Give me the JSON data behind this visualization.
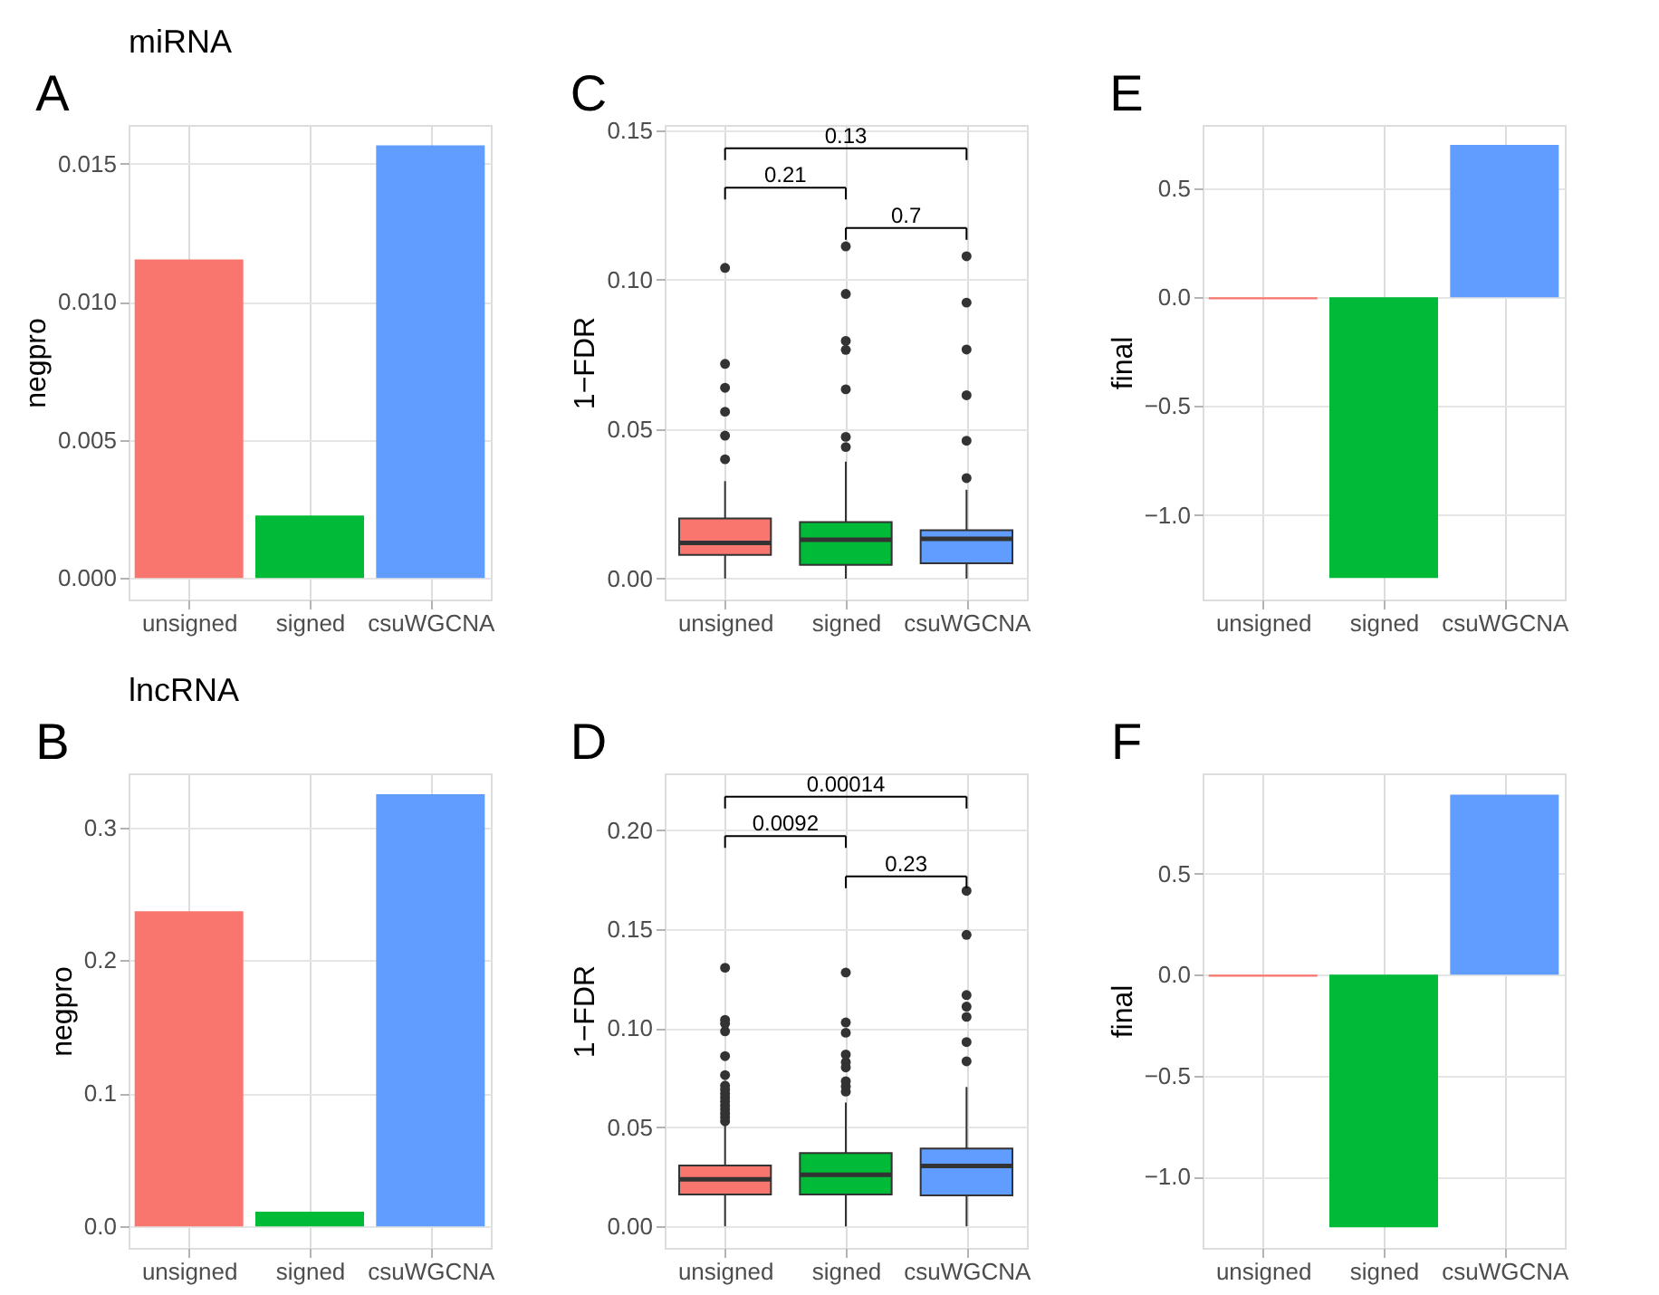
{
  "chart_data": [
    {
      "type": "bar",
      "title": "miRNA",
      "ylabel": "negpro",
      "categories": [
        "unsigned",
        "signed",
        "csuWGCNA"
      ],
      "values": [
        0.01153,
        0.00226,
        0.01566
      ],
      "colors": [
        "#f8766d",
        "#00ba38",
        "#619cff"
      ],
      "ylim": [
        -0.00078,
        0.0164
      ],
      "yticks": [
        {
          "value": 0,
          "label": "0.000"
        },
        0.005,
        {
          "value": 0.01,
          "label": "0.010"
        },
        0.015
      ],
      "grid": true,
      "annotations": [
        "A"
      ]
    },
    {
      "type": "box",
      "ylabel": "1−FDR",
      "categories": [
        "unsigned",
        "signed",
        "csuWGCNA"
      ],
      "colors": [
        "#f8766d",
        "#00ba38",
        "#619cff"
      ],
      "marker": "circle",
      "boxes": [
        {
          "low": 0,
          "q1": 0.0079,
          "median": 0.0119,
          "q3": 0.0201,
          "high": 0.0326,
          "outliers": [
            0.0399,
            0.0478,
            0.0558,
            0.0638,
            0.0718,
            0.1039
          ]
        },
        {
          "low": 0,
          "q1": 0.0046,
          "median": 0.013,
          "q3": 0.0189,
          "high": 0.0391,
          "outliers": [
            0.044,
            0.0474,
            0.0633,
            0.0765,
            0.0795,
            0.0952,
            0.1111
          ]
        },
        {
          "low": 0,
          "q1": 0.0051,
          "median": 0.0133,
          "q3": 0.0162,
          "high": 0.0297,
          "outliers": [
            0.0336,
            0.0461,
            0.0613,
            0.0766,
            0.0923,
            0.1078
          ]
        }
      ],
      "ylim": [
        -0.007,
        0.1517
      ],
      "yticks": [
        {
          "value": 0,
          "label": "0.00"
        },
        0.05,
        {
          "value": 0.1,
          "label": "0.10"
        },
        0.15
      ],
      "grid": true,
      "annotations": [
        "C",
        "0.21",
        "0.7",
        "0.13"
      ]
    },
    {
      "type": "bar",
      "ylabel": "final",
      "categories": [
        "unsigned",
        "signed",
        "csuWGCNA"
      ],
      "values": [
        -0.01,
        -1.29,
        0.7
      ],
      "colors": [
        "#f8766d",
        "#00ba38",
        "#619cff"
      ],
      "ylim": [
        -1.389,
        0.7915
      ],
      "yticks": [
        {
          "value": -1,
          "label": "−1.0"
        },
        {
          "value": -0.5,
          "label": "−0.5"
        },
        {
          "value": 0,
          "label": "0.0"
        },
        0.5
      ],
      "grid": true,
      "annotations": [
        "E"
      ]
    },
    {
      "type": "bar",
      "title": "lncRNA",
      "ylabel": "negpro",
      "categories": [
        "unsigned",
        "signed",
        "csuWGCNA"
      ],
      "values": [
        0.237,
        0.011,
        0.325
      ],
      "colors": [
        "#f8766d",
        "#00ba38",
        "#619cff"
      ],
      "ylim": [
        -0.0162,
        0.3406
      ],
      "yticks": [
        {
          "value": 0,
          "label": "0.0"
        },
        0.1,
        0.2,
        0.3
      ],
      "grid": true,
      "annotations": [
        "B"
      ]
    },
    {
      "type": "box",
      "ylabel": "1−FDR",
      "categories": [
        "unsigned",
        "signed",
        "csuWGCNA"
      ],
      "colors": [
        "#f8766d",
        "#00ba38",
        "#619cff"
      ],
      "marker": "circle",
      "boxes": [
        {
          "low": 0,
          "q1": 0.0161,
          "median": 0.0237,
          "q3": 0.0307,
          "high": 0.0516,
          "outliers": [
            0.053,
            0.055,
            0.057,
            0.059,
            0.061,
            0.063,
            0.065,
            0.067,
            0.069,
            0.071,
            0.0763,
            0.0859,
            0.0984,
            0.1023,
            0.1042,
            0.1305
          ]
        },
        {
          "low": 0,
          "q1": 0.0161,
          "median": 0.026,
          "q3": 0.037,
          "high": 0.0625,
          "outliers": [
            0.068,
            0.0706,
            0.0732,
            0.0802,
            0.0828,
            0.0867,
            0.0977,
            0.1029,
            0.1281
          ]
        },
        {
          "low": 0,
          "q1": 0.0156,
          "median": 0.0305,
          "q3": 0.0393,
          "high": 0.0703,
          "outliers": [
            0.0833,
            0.093,
            0.1057,
            0.1109,
            0.1167,
            0.1471,
            0.1693
          ]
        }
      ],
      "ylim": [
        -0.0109,
        0.2286
      ],
      "yticks": [
        {
          "value": 0,
          "label": "0.00"
        },
        0.05,
        {
          "value": 0.1,
          "label": "0.10"
        },
        0.15,
        {
          "value": 0.2,
          "label": "0.20"
        }
      ],
      "grid": true,
      "annotations": [
        "D",
        "0.0092",
        "0.23",
        "0.00014"
      ]
    },
    {
      "type": "bar",
      "ylabel": "final",
      "categories": [
        "unsigned",
        "signed",
        "csuWGCNA"
      ],
      "values": [
        -0.01,
        -1.25,
        0.89
      ],
      "colors": [
        "#f8766d",
        "#00ba38",
        "#619cff"
      ],
      "ylim": [
        -1.352,
        0.995
      ],
      "yticks": [
        {
          "value": -1,
          "label": "−1.0"
        },
        {
          "value": -0.5,
          "label": "−0.5"
        },
        {
          "value": 0,
          "label": "0.0"
        },
        0.5
      ],
      "grid": true,
      "annotations": [
        "F"
      ]
    }
  ]
}
